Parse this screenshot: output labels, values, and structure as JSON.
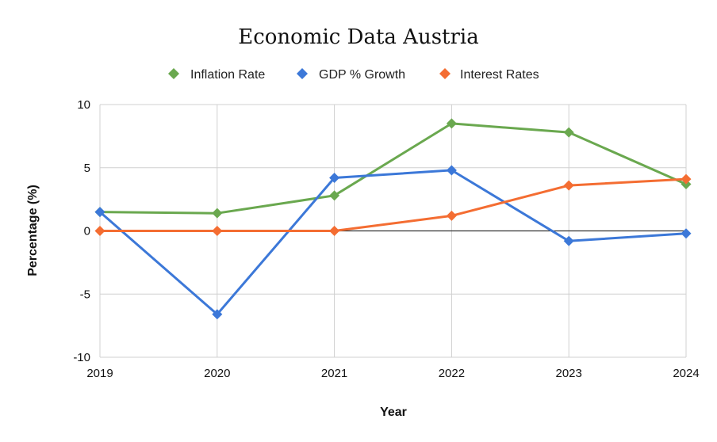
{
  "chart_data": {
    "type": "line",
    "title": "Economic Data Austria",
    "xlabel": "Year",
    "ylabel": "Percentage (%)",
    "x": [
      "2019",
      "2020",
      "2021",
      "2022",
      "2023",
      "2024"
    ],
    "yticks": [
      "10",
      "5",
      "0",
      "-5",
      "-10"
    ],
    "ylim": [
      -10,
      10
    ],
    "grid": true,
    "legend": "top",
    "series": [
      {
        "name": "Inflation Rate",
        "color": "#6aa84f",
        "values": [
          1.5,
          1.4,
          2.8,
          8.5,
          7.8,
          3.7
        ]
      },
      {
        "name": "GDP % Growth",
        "color": "#3c78d8",
        "values": [
          1.5,
          -6.6,
          4.2,
          4.8,
          -0.8,
          -0.2
        ]
      },
      {
        "name": "Interest Rates",
        "color": "#f46d32",
        "values": [
          0,
          0,
          0,
          1.2,
          3.6,
          4.1
        ]
      }
    ]
  }
}
